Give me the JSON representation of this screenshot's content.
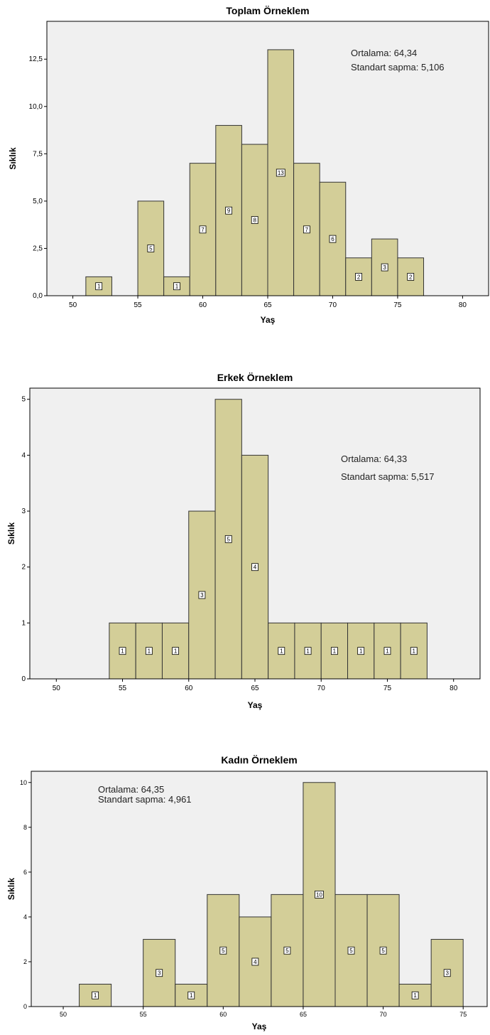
{
  "colors": {
    "bar": "#d3ce98",
    "bar_stroke": "#333333",
    "plot_bg": "#f0f0f0"
  },
  "chart_data": [
    {
      "type": "bar",
      "title": "Toplam Örneklem",
      "xlabel": "Yaş",
      "ylabel": "Sıklık",
      "xlim": [
        48,
        82
      ],
      "ylim": [
        0,
        14.5
      ],
      "xticks": [
        50,
        55,
        60,
        65,
        70,
        75,
        80
      ],
      "yticks": [
        0,
        2.5,
        5,
        7.5,
        10,
        12.5
      ],
      "ytick_labels": [
        "0,0",
        "2,5",
        "5,0",
        "7,5",
        "10,0",
        "12,5"
      ],
      "bin_width": 2,
      "bins": [
        {
          "start": 51,
          "value": 1
        },
        {
          "start": 55,
          "value": 5
        },
        {
          "start": 57,
          "value": 1
        },
        {
          "start": 59,
          "value": 7
        },
        {
          "start": 61,
          "value": 9
        },
        {
          "start": 63,
          "value": 8
        },
        {
          "start": 65,
          "value": 13
        },
        {
          "start": 67,
          "value": 7
        },
        {
          "start": 69,
          "value": 6
        },
        {
          "start": 71,
          "value": 2
        },
        {
          "start": 73,
          "value": 3
        },
        {
          "start": 75,
          "value": 2
        }
      ],
      "stats": [
        "Ortalama: 64,34",
        "Standart sapma: 5,106"
      ],
      "stats_position": "top-right"
    },
    {
      "type": "bar",
      "title": "Erkek Örneklem",
      "xlabel": "Yaş",
      "ylabel": "Sıklık",
      "xlim": [
        48,
        82
      ],
      "ylim": [
        0,
        5.2
      ],
      "xticks": [
        50,
        55,
        60,
        65,
        70,
        75,
        80
      ],
      "yticks": [
        0,
        1,
        2,
        3,
        4,
        5
      ],
      "ytick_labels": [
        "0",
        "1",
        "2",
        "3",
        "4",
        "5"
      ],
      "bin_width": 2,
      "bins": [
        {
          "start": 54,
          "value": 1
        },
        {
          "start": 56,
          "value": 1
        },
        {
          "start": 58,
          "value": 1
        },
        {
          "start": 60,
          "value": 3
        },
        {
          "start": 62,
          "value": 5
        },
        {
          "start": 64,
          "value": 4
        },
        {
          "start": 66,
          "value": 1
        },
        {
          "start": 68,
          "value": 1
        },
        {
          "start": 70,
          "value": 1
        },
        {
          "start": 72,
          "value": 1
        },
        {
          "start": 74,
          "value": 1
        },
        {
          "start": 76,
          "value": 1
        }
      ],
      "stats": [
        "Ortalama: 64,33",
        "Standart sapma: 5,517"
      ],
      "stats_position": "top-right"
    },
    {
      "type": "bar",
      "title": "Kadın Örneklem",
      "xlabel": "Yaş",
      "ylabel": "Sıklık",
      "xlim": [
        48,
        76.5
      ],
      "ylim": [
        0,
        10.5
      ],
      "xticks": [
        50,
        55,
        60,
        65,
        70,
        75
      ],
      "yticks": [
        0,
        2,
        4,
        6,
        8,
        10
      ],
      "ytick_labels": [
        "0",
        "2",
        "4",
        "6",
        "8",
        "10"
      ],
      "bin_width": 2,
      "bins": [
        {
          "start": 51,
          "value": 1
        },
        {
          "start": 55,
          "value": 3
        },
        {
          "start": 57,
          "value": 1
        },
        {
          "start": 59,
          "value": 5
        },
        {
          "start": 61,
          "value": 4
        },
        {
          "start": 63,
          "value": 5
        },
        {
          "start": 65,
          "value": 10
        },
        {
          "start": 67,
          "value": 5
        },
        {
          "start": 69,
          "value": 5
        },
        {
          "start": 71,
          "value": 1
        },
        {
          "start": 73,
          "value": 3
        }
      ],
      "stats": [
        "Ortalama: 64,35",
        "Standart sapma: 4,961"
      ],
      "stats_position": "top-left"
    }
  ]
}
